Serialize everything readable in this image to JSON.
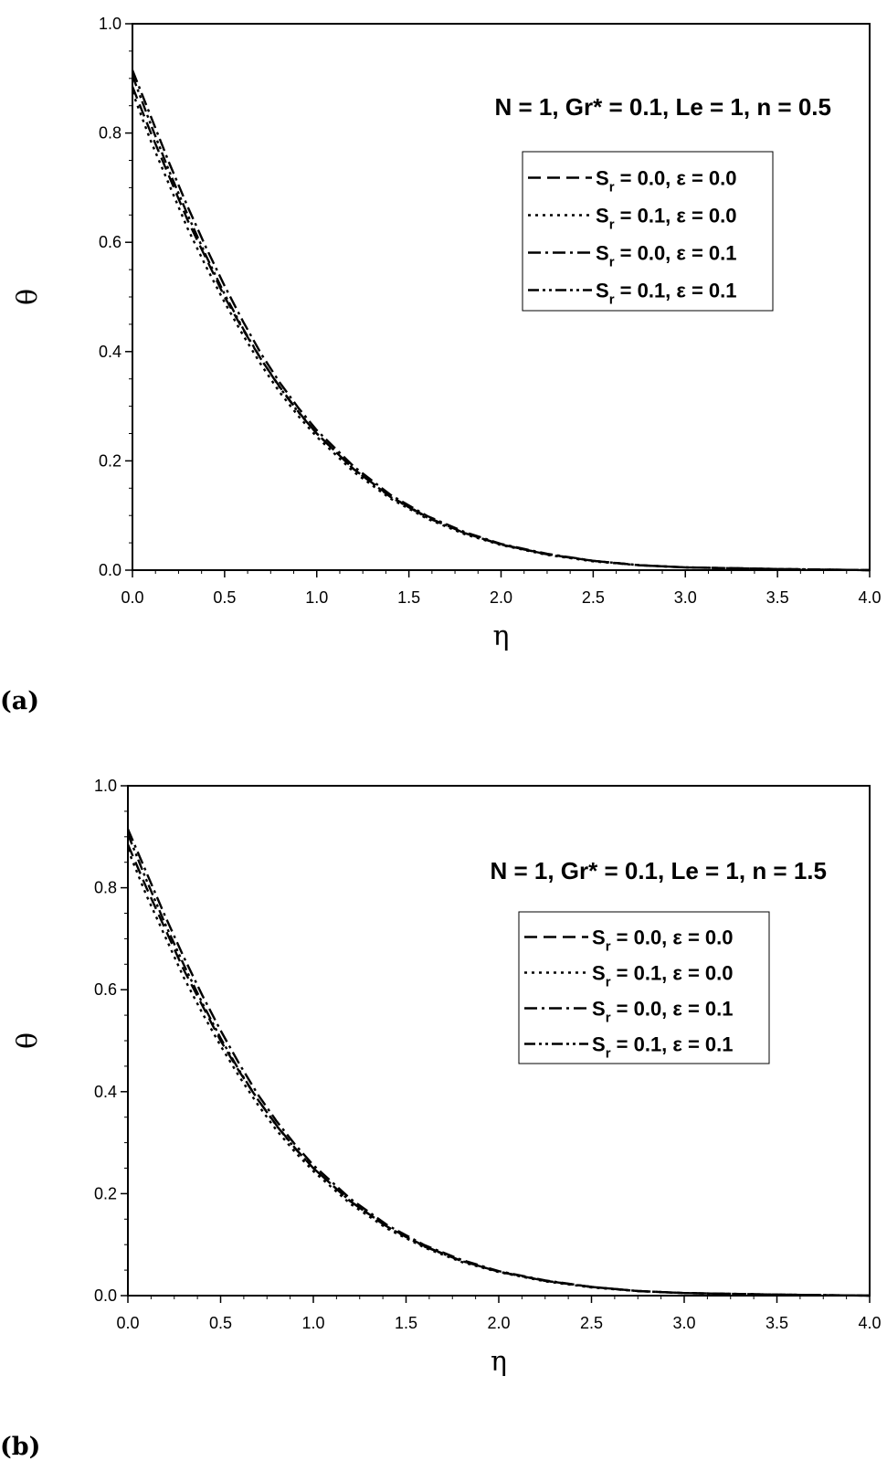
{
  "chart_data": [
    {
      "type": "line",
      "panel_label": "(a)",
      "annotation": "N = 1, Gr* = 0.1, Le = 1, n = 0.5",
      "xlabel": "η",
      "ylabel": "θ",
      "xlim": [
        0,
        4
      ],
      "ylim": [
        0,
        1
      ],
      "xticks": [
        "0.0",
        "0.5",
        "1.0",
        "1.5",
        "2.0",
        "2.5",
        "3.0",
        "3.5",
        "4.0"
      ],
      "yticks": [
        "0.0",
        "0.2",
        "0.4",
        "0.6",
        "0.8",
        "1.0"
      ],
      "legend_position": "upper-right",
      "x": [
        0,
        0.1,
        0.2,
        0.3,
        0.4,
        0.5,
        0.6,
        0.7,
        0.8,
        0.9,
        1.0,
        1.2,
        1.4,
        1.6,
        1.8,
        2.0,
        2.25,
        2.5,
        2.75,
        3.0,
        3.5,
        4.0
      ],
      "series": [
        {
          "legend": {
            "pre": "S",
            "sub": "r",
            "post": " = 0.0, ε = 0.0"
          },
          "dash": "dash",
          "values": [
            0.885,
            0.8,
            0.72,
            0.64,
            0.57,
            0.5,
            0.44,
            0.385,
            0.335,
            0.29,
            0.25,
            0.185,
            0.135,
            0.097,
            0.068,
            0.047,
            0.029,
            0.017,
            0.009,
            0.005,
            0.002,
            0.0
          ]
        },
        {
          "legend": {
            "pre": "S",
            "sub": "r",
            "post": " = 0.1, ε = 0.0"
          },
          "dash": "dot",
          "values": [
            0.875,
            0.785,
            0.705,
            0.625,
            0.555,
            0.49,
            0.43,
            0.375,
            0.325,
            0.282,
            0.244,
            0.18,
            0.131,
            0.094,
            0.066,
            0.046,
            0.028,
            0.016,
            0.009,
            0.005,
            0.002,
            0.0
          ]
        },
        {
          "legend": {
            "pre": "S",
            "sub": "r",
            "post": " = 0.0, ε = 0.1"
          },
          "dash": "dashdot",
          "values": [
            0.915,
            0.83,
            0.745,
            0.665,
            0.59,
            0.52,
            0.455,
            0.395,
            0.343,
            0.297,
            0.256,
            0.19,
            0.138,
            0.099,
            0.07,
            0.048,
            0.03,
            0.017,
            0.009,
            0.005,
            0.002,
            0.0
          ]
        },
        {
          "legend": {
            "pre": "S",
            "sub": "r",
            "post": " = 0.1, ε = 0.1"
          },
          "dash": "dashdotdot",
          "values": [
            0.905,
            0.815,
            0.73,
            0.65,
            0.575,
            0.505,
            0.442,
            0.385,
            0.334,
            0.289,
            0.25,
            0.185,
            0.134,
            0.096,
            0.068,
            0.047,
            0.029,
            0.017,
            0.009,
            0.005,
            0.002,
            0.0
          ]
        }
      ]
    },
    {
      "type": "line",
      "panel_label": "(b)",
      "annotation": "N = 1, Gr* = 0.1, Le = 1, n = 1.5",
      "xlabel": "η",
      "ylabel": "θ",
      "xlim": [
        0,
        4
      ],
      "ylim": [
        0,
        1
      ],
      "xticks": [
        "0.0",
        "0.5",
        "1.0",
        "1.5",
        "2.0",
        "2.5",
        "3.0",
        "3.5",
        "4.0"
      ],
      "yticks": [
        "0.0",
        "0.2",
        "0.4",
        "0.6",
        "0.8",
        "1.0"
      ],
      "legend_position": "upper-right",
      "x": [
        0,
        0.1,
        0.2,
        0.3,
        0.4,
        0.5,
        0.6,
        0.7,
        0.8,
        0.9,
        1.0,
        1.2,
        1.4,
        1.6,
        1.8,
        2.0,
        2.25,
        2.5,
        2.75,
        3.0,
        3.5,
        4.0
      ],
      "series": [
        {
          "legend": {
            "pre": "S",
            "sub": "r",
            "post": " = 0.0, ε = 0.0"
          },
          "dash": "dash",
          "values": [
            0.885,
            0.8,
            0.72,
            0.64,
            0.57,
            0.5,
            0.44,
            0.385,
            0.335,
            0.29,
            0.25,
            0.185,
            0.135,
            0.097,
            0.068,
            0.047,
            0.029,
            0.017,
            0.009,
            0.005,
            0.002,
            0.0
          ]
        },
        {
          "legend": {
            "pre": "S",
            "sub": "r",
            "post": " = 0.1, ε = 0.0"
          },
          "dash": "dot",
          "values": [
            0.875,
            0.785,
            0.705,
            0.625,
            0.555,
            0.49,
            0.43,
            0.375,
            0.325,
            0.282,
            0.244,
            0.18,
            0.131,
            0.094,
            0.066,
            0.046,
            0.028,
            0.016,
            0.009,
            0.005,
            0.002,
            0.0
          ]
        },
        {
          "legend": {
            "pre": "S",
            "sub": "r",
            "post": " = 0.0, ε = 0.1"
          },
          "dash": "dashdot",
          "values": [
            0.915,
            0.83,
            0.745,
            0.665,
            0.59,
            0.52,
            0.455,
            0.395,
            0.343,
            0.297,
            0.256,
            0.19,
            0.138,
            0.099,
            0.07,
            0.048,
            0.03,
            0.017,
            0.009,
            0.005,
            0.002,
            0.0
          ]
        },
        {
          "legend": {
            "pre": "S",
            "sub": "r",
            "post": " = 0.1, ε = 0.1"
          },
          "dash": "dashdotdot",
          "values": [
            0.905,
            0.815,
            0.73,
            0.65,
            0.575,
            0.505,
            0.442,
            0.385,
            0.334,
            0.289,
            0.25,
            0.185,
            0.134,
            0.096,
            0.068,
            0.047,
            0.029,
            0.017,
            0.009,
            0.005,
            0.002,
            0.0
          ]
        }
      ]
    }
  ]
}
